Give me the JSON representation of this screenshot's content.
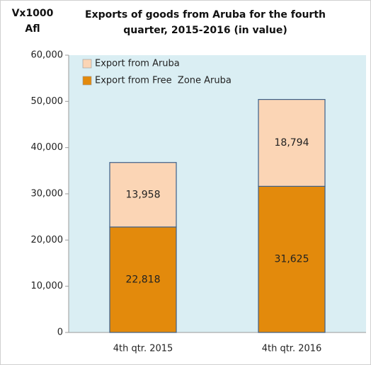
{
  "chart_data": {
    "type": "stacked_bar",
    "title": "Exports of goods from Aruba for the fourth quarter, 2015-2016 (in value)",
    "y_label": "Vx1000 Afl",
    "categories": [
      "4th qtr. 2015",
      "4th qtr. 2016"
    ],
    "series": [
      {
        "name": "Export from Free  Zone Aruba",
        "color": "#e38a0c",
        "values": [
          22818,
          31625
        ],
        "value_labels": [
          "22,818",
          "31,625"
        ]
      },
      {
        "name": "Export from Aruba",
        "color": "#fbd5b5",
        "values": [
          13958,
          18794
        ],
        "value_labels": [
          "13,958",
          "18,794"
        ]
      }
    ],
    "ylim": [
      0,
      60000
    ],
    "yticks": [
      0,
      {
        "value": 10000,
        "label": "10,000"
      },
      {
        "value": 20000,
        "label": "20,000"
      },
      {
        "value": 30000,
        "label": "30,000"
      },
      {
        "value": 40000,
        "label": "40,000"
      },
      {
        "value": 50000,
        "label": "50,000"
      },
      {
        "value": 60000,
        "label": "60,000"
      }
    ],
    "legend": "top-left"
  }
}
